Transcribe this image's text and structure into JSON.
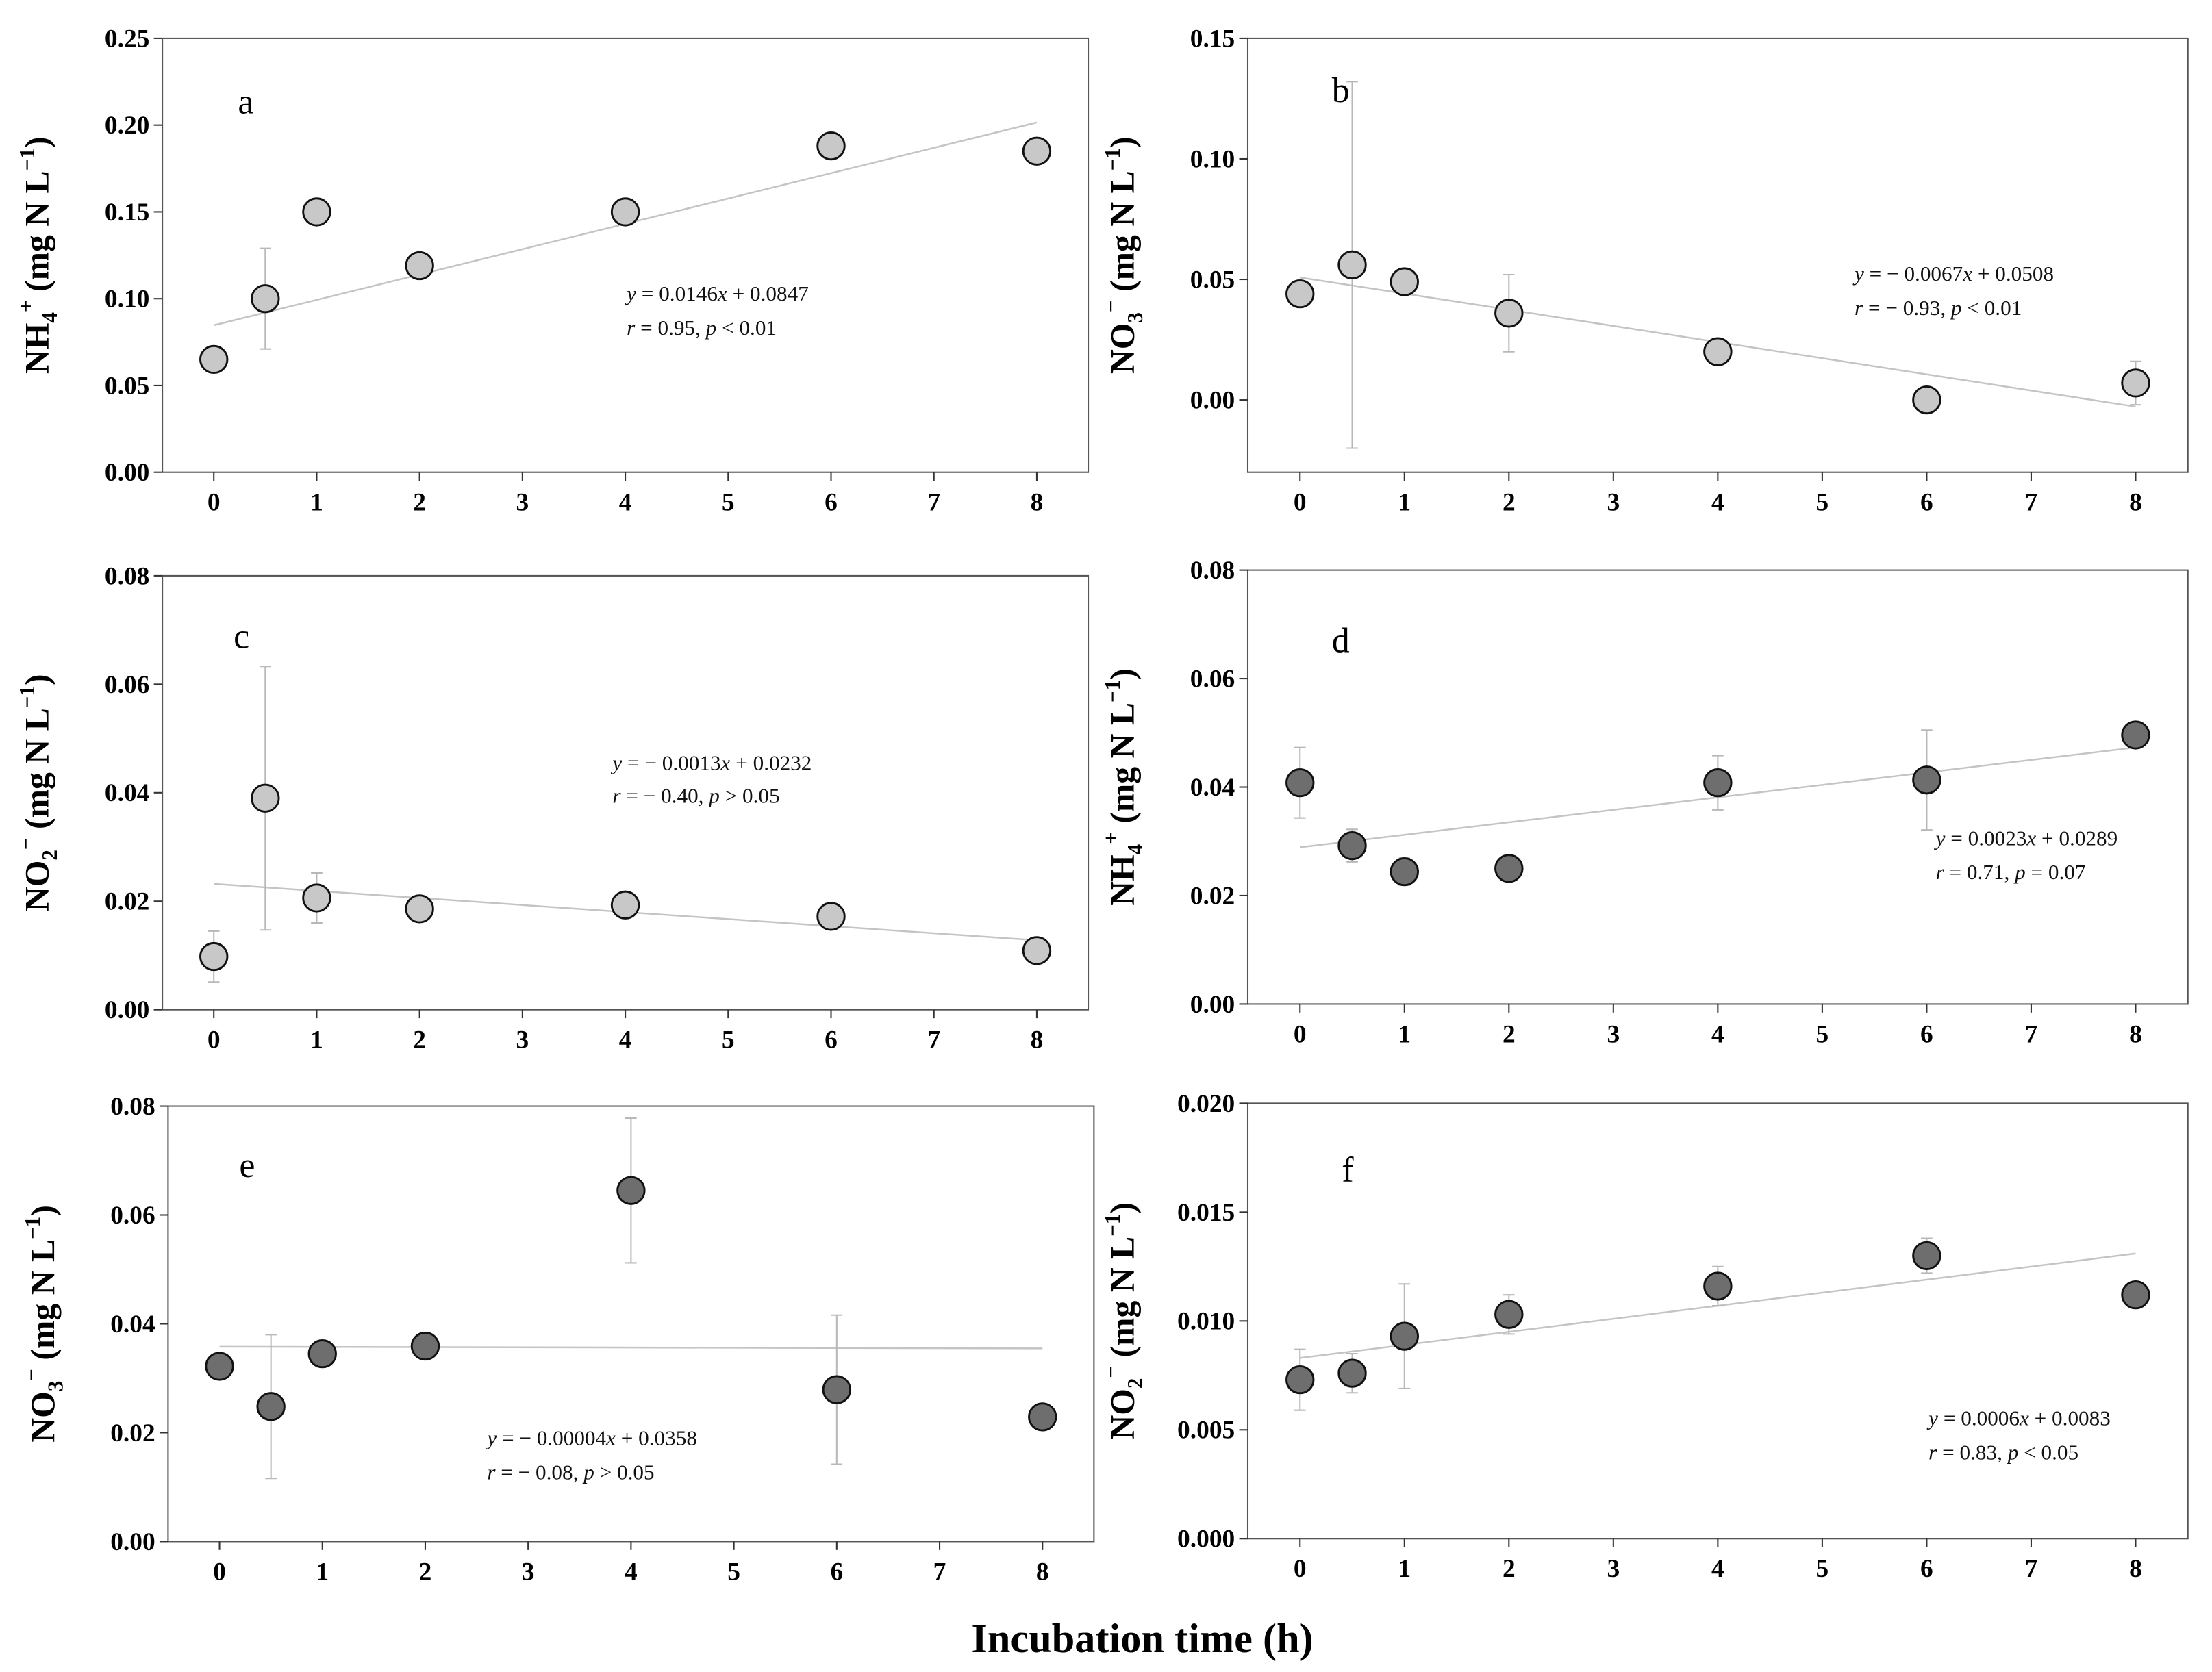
{
  "figure": {
    "xlabel": "Incubation time (h)"
  },
  "chart_data": [
    {
      "type": "scatter",
      "panel": "a",
      "ylabel": "NH4+ (mg N L−1)",
      "ylabel_parts": [
        "NH",
        "4",
        "+",
        " (mg N L",
        "−1",
        ")"
      ],
      "xlim": [
        -0.5,
        8.5
      ],
      "ylim": [
        0,
        0.25
      ],
      "xticks": [
        "0",
        "1",
        "2",
        "3",
        "4",
        "5",
        "6",
        "7",
        "8"
      ],
      "yticks": [
        "0.00",
        "0.05",
        "0.10",
        "0.15",
        "0.20",
        "0.25"
      ],
      "ytick_values": [
        0,
        0.05,
        0.1,
        0.15,
        0.2,
        0.25
      ],
      "x": [
        0,
        0.5,
        1,
        2,
        4,
        6,
        8
      ],
      "y": [
        0.065,
        0.1,
        0.15,
        0.119,
        0.15,
        0.188,
        0.185
      ],
      "err": [
        0,
        0.029,
        0,
        0,
        0,
        0,
        0
      ],
      "fit": {
        "slope": 0.0146,
        "intercept": 0.0847
      },
      "eq_parts": [
        "y",
        " = 0.0146",
        "x",
        " + 0.0847"
      ],
      "stat_parts": [
        "r",
        " = 0.95, ",
        "p",
        " < 0.01"
      ],
      "marker_color": "#c8c8c8"
    },
    {
      "type": "scatter",
      "panel": "b",
      "ylabel": "NO3− (mg N L−1)",
      "ylabel_parts": [
        "NO",
        "3",
        "−",
        " (mg N L",
        "−1",
        ")"
      ],
      "xlim": [
        -0.5,
        8.5
      ],
      "ylim": [
        -0.03,
        0.15
      ],
      "xticks": [
        "0",
        "1",
        "2",
        "3",
        "4",
        "5",
        "6",
        "7",
        "8"
      ],
      "yticks": [
        "0.00",
        "0.05",
        "0.10",
        "0.15"
      ],
      "ytick_values": [
        0,
        0.05,
        0.1,
        0.15
      ],
      "x": [
        0,
        0.5,
        1,
        2,
        4,
        6,
        8
      ],
      "y": [
        0.044,
        0.056,
        0.049,
        0.036,
        0.02,
        0.0,
        0.007
      ],
      "err": [
        0,
        0.076,
        0,
        0.016,
        0.004,
        0,
        0.009
      ],
      "fit": {
        "slope": -0.0067,
        "intercept": 0.0508
      },
      "eq_parts": [
        "y",
        " = − 0.0067",
        "x",
        " + 0.0508"
      ],
      "stat_parts": [
        "r",
        " = − 0.93, ",
        "p",
        " < 0.01"
      ],
      "marker_color": "#c8c8c8"
    },
    {
      "type": "scatter",
      "panel": "c",
      "ylabel": "NO2− (mg N L−1)",
      "ylabel_parts": [
        "NO",
        "2",
        "−",
        " (mg N L",
        "−1",
        ")"
      ],
      "xlim": [
        -0.5,
        8.5
      ],
      "ylim": [
        0,
        0.08
      ],
      "xticks": [
        "0",
        "1",
        "2",
        "3",
        "4",
        "5",
        "6",
        "7",
        "8"
      ],
      "yticks": [
        "0.00",
        "0.02",
        "0.04",
        "0.06",
        "0.08"
      ],
      "ytick_values": [
        0,
        0.02,
        0.04,
        0.06,
        0.08
      ],
      "x": [
        0,
        0.5,
        1,
        2,
        4,
        6,
        8
      ],
      "y": [
        0.0098,
        0.039,
        0.0206,
        0.0186,
        0.0193,
        0.0172,
        0.0109
      ],
      "err": [
        0.0047,
        0.0243,
        0.0046,
        0,
        0,
        0,
        0
      ],
      "fit": {
        "slope": -0.0013,
        "intercept": 0.0232
      },
      "eq_parts": [
        "y",
        " = − 0.0013",
        "x",
        " + 0.0232"
      ],
      "stat_parts": [
        "r",
        " = − 0.40, ",
        "p",
        " > 0.05"
      ],
      "marker_color": "#c8c8c8"
    },
    {
      "type": "scatter",
      "panel": "d",
      "ylabel": "NH4+ (mg N L−1)",
      "ylabel_parts": [
        "NH",
        "4",
        "+",
        " (mg N L",
        "−1",
        ")"
      ],
      "xlim": [
        -0.5,
        8.5
      ],
      "ylim": [
        0,
        0.08
      ],
      "xticks": [
        "0",
        "1",
        "2",
        "3",
        "4",
        "5",
        "6",
        "7",
        "8"
      ],
      "yticks": [
        "0.00",
        "0.02",
        "0.04",
        "0.06",
        "0.08"
      ],
      "ytick_values": [
        0,
        0.02,
        0.04,
        0.06,
        0.08
      ],
      "x": [
        0,
        0.5,
        1,
        2,
        4,
        6,
        8
      ],
      "y": [
        0.0408,
        0.0292,
        0.0244,
        0.025,
        0.0408,
        0.0413,
        0.0496
      ],
      "err": [
        0.0065,
        0.003,
        0.0025,
        0,
        0.005,
        0.0092,
        0
      ],
      "fit": {
        "slope": 0.0023,
        "intercept": 0.0289
      },
      "eq_parts": [
        "y",
        " = 0.0023",
        "x",
        " + 0.0289"
      ],
      "stat_parts": [
        "r",
        " = 0.71, ",
        "p",
        " = 0.07"
      ],
      "marker_color": "#6e6e6e"
    },
    {
      "type": "scatter",
      "panel": "e",
      "ylabel": "NO3− (mg N L−1)",
      "ylabel_parts": [
        "NO",
        "3",
        "−",
        " (mg N L",
        "−1",
        ")"
      ],
      "xlim": [
        -0.5,
        8.5
      ],
      "ylim": [
        0,
        0.08
      ],
      "xticks": [
        "0",
        "1",
        "2",
        "3",
        "4",
        "5",
        "6",
        "7",
        "8"
      ],
      "yticks": [
        "0.00",
        "0.02",
        "0.04",
        "0.06",
        "0.08"
      ],
      "ytick_values": [
        0,
        0.02,
        0.04,
        0.06,
        0.08
      ],
      "x": [
        0,
        0.5,
        1,
        2,
        4,
        6,
        8
      ],
      "y": [
        0.0322,
        0.0248,
        0.0345,
        0.0359,
        0.0645,
        0.0279,
        0.0229
      ],
      "err": [
        0,
        0.0132,
        0,
        0,
        0.0133,
        0.0137,
        0
      ],
      "fit": {
        "slope": -4e-05,
        "intercept": 0.0358
      },
      "eq_parts": [
        "y",
        " = − 0.00004",
        "x",
        " + 0.0358"
      ],
      "stat_parts": [
        "r",
        " = − 0.08, ",
        "p",
        " > 0.05"
      ],
      "marker_color": "#6e6e6e"
    },
    {
      "type": "scatter",
      "panel": "f",
      "ylabel": "NO2− (mg N L−1)",
      "ylabel_parts": [
        "NO",
        "2",
        "−",
        " (mg N L",
        "−1",
        ")"
      ],
      "xlim": [
        -0.5,
        8.5
      ],
      "ylim": [
        0,
        0.02
      ],
      "xticks": [
        "0",
        "1",
        "2",
        "3",
        "4",
        "5",
        "6",
        "7",
        "8"
      ],
      "yticks": [
        "0.000",
        "0.005",
        "0.010",
        "0.015",
        "0.020"
      ],
      "ytick_values": [
        0,
        0.005,
        0.01,
        0.015,
        0.02
      ],
      "x": [
        0,
        0.5,
        1,
        2,
        4,
        6,
        8
      ],
      "y": [
        0.0073,
        0.0076,
        0.0093,
        0.0103,
        0.0116,
        0.013,
        0.0112
      ],
      "err": [
        0.0014,
        0.0009,
        0.0024,
        0.0009,
        0.0009,
        0.0008,
        0
      ],
      "fit": {
        "slope": 0.0006,
        "intercept": 0.0083
      },
      "eq_parts": [
        "y",
        " = 0.0006",
        "x",
        " + 0.0083"
      ],
      "stat_parts": [
        "r",
        " = 0.83, ",
        "p",
        " < 0.05"
      ],
      "marker_color": "#6e6e6e"
    }
  ]
}
